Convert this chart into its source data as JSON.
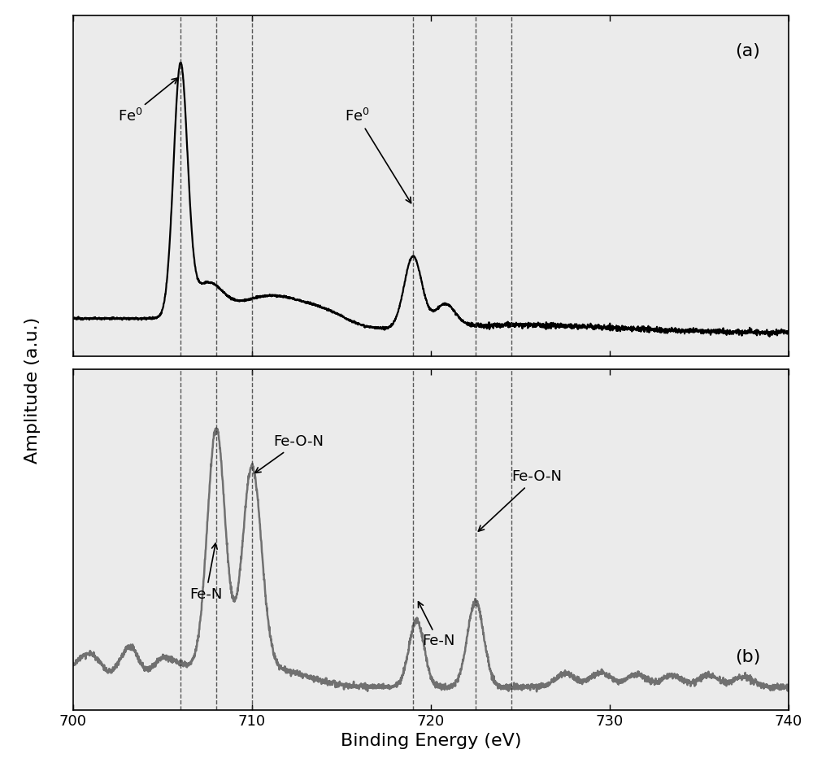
{
  "xlim": [
    700,
    740
  ],
  "xlabel": "Binding Energy (eV)",
  "ylabel": "Amplitude (a.u.)",
  "panel_a_label": "(a)",
  "panel_b_label": "(b)",
  "vlines": [
    706.0,
    708.0,
    710.0,
    719.0,
    722.5,
    724.5
  ],
  "line_color_a": "#000000",
  "line_color_b": "#707070",
  "annotation_fontsize": 13,
  "label_fontsize": 15,
  "tick_fontsize": 13
}
